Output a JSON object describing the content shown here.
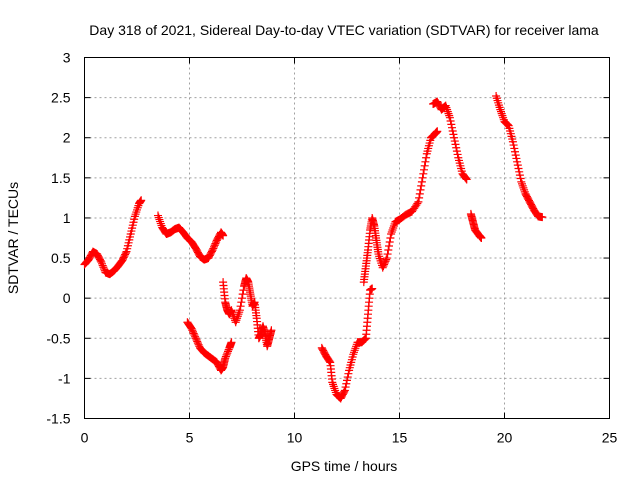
{
  "chart_data": {
    "type": "scatter",
    "title": "Day 318 of 2021, Sidereal Day-to-day VTEC variation (SDTVAR) for receiver lama",
    "xlabel": "GPS time / hours",
    "ylabel": "SDTVAR / TECUs",
    "xlim": [
      0,
      25
    ],
    "ylim": [
      -1.5,
      3
    ],
    "xticks": [
      "0",
      "5",
      "10",
      "15",
      "20",
      "25"
    ],
    "yticks": [
      "-1.5",
      "-1",
      "-0.5",
      "0",
      "0.5",
      "1",
      "1.5",
      "2",
      "2.5",
      "3"
    ],
    "grid": true,
    "marker": "+",
    "color": "#ff0000",
    "series": [
      {
        "name": "segment-1",
        "points": [
          [
            0.0,
            0.42
          ],
          [
            0.2,
            0.48
          ],
          [
            0.4,
            0.58
          ],
          [
            0.6,
            0.55
          ],
          [
            0.8,
            0.45
          ],
          [
            1.0,
            0.32
          ],
          [
            1.2,
            0.3
          ],
          [
            1.4,
            0.34
          ],
          [
            1.6,
            0.4
          ],
          [
            1.8,
            0.47
          ],
          [
            2.0,
            0.58
          ],
          [
            2.2,
            0.8
          ],
          [
            2.4,
            1.02
          ],
          [
            2.6,
            1.18
          ],
          [
            2.7,
            1.22
          ]
        ]
      },
      {
        "name": "segment-2",
        "points": [
          [
            3.5,
            1.03
          ],
          [
            3.7,
            0.88
          ],
          [
            3.9,
            0.8
          ],
          [
            4.1,
            0.82
          ],
          [
            4.3,
            0.86
          ],
          [
            4.5,
            0.88
          ],
          [
            4.7,
            0.82
          ],
          [
            4.9,
            0.75
          ],
          [
            5.1,
            0.7
          ],
          [
            5.3,
            0.62
          ],
          [
            5.5,
            0.52
          ],
          [
            5.7,
            0.48
          ],
          [
            5.9,
            0.5
          ],
          [
            6.1,
            0.6
          ],
          [
            6.3,
            0.72
          ],
          [
            6.5,
            0.82
          ],
          [
            6.6,
            0.78
          ]
        ]
      },
      {
        "name": "segment-3",
        "points": [
          [
            6.6,
            0.2
          ],
          [
            6.7,
            -0.05
          ],
          [
            6.8,
            -0.15
          ],
          [
            6.9,
            -0.2
          ],
          [
            7.0,
            -0.15
          ],
          [
            7.2,
            -0.3
          ],
          [
            7.4,
            -0.15
          ],
          [
            7.6,
            0.15
          ],
          [
            7.7,
            0.25
          ],
          [
            7.8,
            0.2
          ],
          [
            7.9,
            0.05
          ],
          [
            8.0,
            -0.1
          ],
          [
            8.1,
            -0.05
          ],
          [
            8.2,
            -0.25
          ],
          [
            8.3,
            -0.5
          ],
          [
            8.4,
            -0.45
          ],
          [
            8.5,
            -0.35
          ],
          [
            8.6,
            -0.45
          ],
          [
            8.7,
            -0.6
          ],
          [
            8.8,
            -0.5
          ],
          [
            8.9,
            -0.4
          ]
        ]
      },
      {
        "name": "segment-4",
        "points": [
          [
            4.9,
            -0.3
          ],
          [
            5.1,
            -0.38
          ],
          [
            5.3,
            -0.5
          ],
          [
            5.5,
            -0.62
          ],
          [
            5.7,
            -0.68
          ],
          [
            5.9,
            -0.72
          ],
          [
            6.1,
            -0.76
          ],
          [
            6.3,
            -0.8
          ],
          [
            6.5,
            -0.9
          ],
          [
            6.6,
            -0.86
          ],
          [
            6.7,
            -0.75
          ],
          [
            6.9,
            -0.62
          ],
          [
            7.0,
            -0.55
          ]
        ]
      },
      {
        "name": "segment-5",
        "points": [
          [
            11.3,
            -0.62
          ],
          [
            11.5,
            -0.72
          ],
          [
            11.7,
            -0.8
          ],
          [
            11.8,
            -1.05
          ],
          [
            12.0,
            -1.2
          ],
          [
            12.2,
            -1.25
          ],
          [
            12.4,
            -1.15
          ],
          [
            12.6,
            -0.9
          ],
          [
            12.8,
            -0.7
          ],
          [
            13.0,
            -0.55
          ],
          [
            13.2,
            -0.55
          ],
          [
            13.4,
            -0.5
          ],
          [
            13.5,
            -0.2
          ],
          [
            13.6,
            0.1
          ],
          [
            13.7,
            0.12
          ]
        ]
      },
      {
        "name": "segment-6",
        "points": [
          [
            13.3,
            0.2
          ],
          [
            13.4,
            0.4
          ],
          [
            13.5,
            0.6
          ],
          [
            13.6,
            0.85
          ],
          [
            13.7,
            1.0
          ],
          [
            13.8,
            0.9
          ],
          [
            13.9,
            0.72
          ],
          [
            14.0,
            0.55
          ],
          [
            14.2,
            0.38
          ],
          [
            14.4,
            0.5
          ],
          [
            14.6,
            0.8
          ],
          [
            14.8,
            0.95
          ],
          [
            15.0,
            0.98
          ],
          [
            15.3,
            1.04
          ],
          [
            15.6,
            1.08
          ],
          [
            15.9,
            1.2
          ],
          [
            16.1,
            1.5
          ],
          [
            16.3,
            1.8
          ],
          [
            16.5,
            2.0
          ],
          [
            16.7,
            2.05
          ],
          [
            16.8,
            2.08
          ]
        ]
      },
      {
        "name": "segment-7",
        "points": [
          [
            16.6,
            2.42
          ],
          [
            16.8,
            2.45
          ],
          [
            17.0,
            2.35
          ],
          [
            17.2,
            2.4
          ],
          [
            17.4,
            2.25
          ],
          [
            17.6,
            2.0
          ],
          [
            17.8,
            1.75
          ],
          [
            18.0,
            1.55
          ],
          [
            18.2,
            1.48
          ]
        ]
      },
      {
        "name": "segment-8",
        "points": [
          [
            18.4,
            1.05
          ],
          [
            18.5,
            0.95
          ],
          [
            18.6,
            0.85
          ],
          [
            18.8,
            0.78
          ],
          [
            18.9,
            0.75
          ]
        ]
      },
      {
        "name": "segment-9",
        "points": [
          [
            19.6,
            2.52
          ],
          [
            19.8,
            2.35
          ],
          [
            20.0,
            2.2
          ],
          [
            20.2,
            2.15
          ],
          [
            20.4,
            1.95
          ],
          [
            20.6,
            1.7
          ],
          [
            20.8,
            1.45
          ],
          [
            21.0,
            1.3
          ],
          [
            21.2,
            1.2
          ],
          [
            21.4,
            1.1
          ],
          [
            21.6,
            1.02
          ],
          [
            21.8,
            1.01
          ]
        ]
      }
    ]
  }
}
